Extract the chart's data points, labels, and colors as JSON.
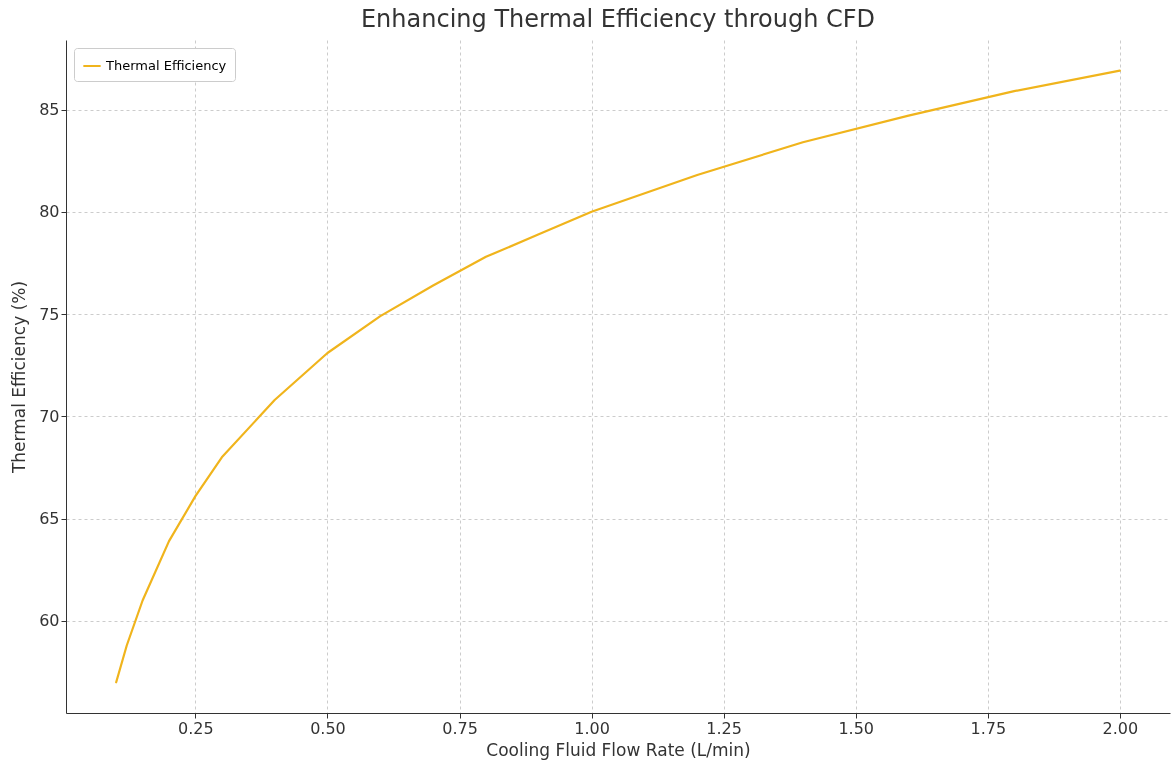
{
  "chart_data": {
    "type": "line",
    "title": "Enhancing Thermal Efficiency through CFD",
    "xlabel": "Cooling Fluid Flow Rate (L/min)",
    "ylabel": "Thermal Efficiency (%)",
    "x": [
      0.1,
      0.12,
      0.15,
      0.2,
      0.25,
      0.3,
      0.4,
      0.5,
      0.6,
      0.7,
      0.8,
      0.9,
      1.0,
      1.2,
      1.4,
      1.6,
      1.8,
      2.0
    ],
    "series": [
      {
        "name": "Thermal Efficiency",
        "color": "#f0b41c",
        "values": [
          57.0,
          58.8,
          61.0,
          63.9,
          66.1,
          68.0,
          70.8,
          73.1,
          74.9,
          76.4,
          77.8,
          78.9,
          80.0,
          81.8,
          83.4,
          84.7,
          85.9,
          86.9
        ]
      }
    ],
    "xlim": [
      0.005,
      2.095
    ],
    "ylim": [
      55.5,
      88.4
    ],
    "xticks": [
      {
        "value": 0.25,
        "label": "0.25"
      },
      {
        "value": 0.5,
        "label": "0.50"
      },
      {
        "value": 0.75,
        "label": "0.75"
      },
      {
        "value": 1.0,
        "label": "1.00"
      },
      {
        "value": 1.25,
        "label": "1.25"
      },
      {
        "value": 1.5,
        "label": "1.50"
      },
      {
        "value": 1.75,
        "label": "1.75"
      },
      {
        "value": 2.0,
        "label": "2.00"
      }
    ],
    "yticks": [
      60,
      65,
      70,
      75,
      80,
      85
    ],
    "grid": true,
    "legend": "top left",
    "marker": "none",
    "line_style": "solid"
  }
}
